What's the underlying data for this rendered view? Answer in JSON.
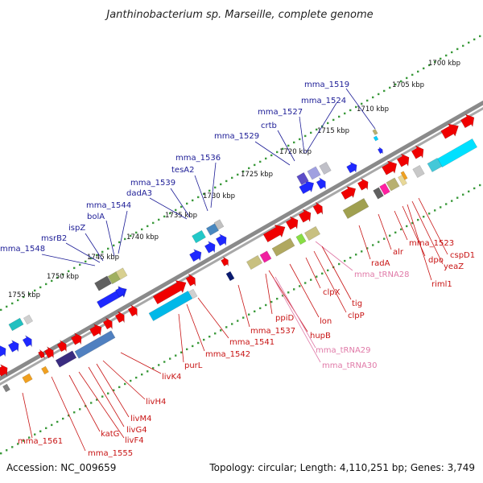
{
  "title": "Janthinobacterium sp. Marseille, complete genome",
  "footer": {
    "accession": "Accession: NC_009659",
    "summary": "Topology: circular; Length: 4,110,251 bp; Genes: 3,749"
  },
  "colors": {
    "upper_label": "#1c1c96",
    "lower_label": "#c81414",
    "rna_label": "#e07aa8",
    "ruler_dot": "#3c9a3c",
    "backbone": "#8a8a8a"
  },
  "ruler_ticks": [
    "1700 kbp",
    "1705 kbp",
    "1710 kbp",
    "1715 kbp",
    "1720 kbp",
    "1725 kbp",
    "1730 kbp",
    "1735 kbp",
    "1740 kbp",
    "1745 kbp",
    "1750 kbp",
    "1755 kbp"
  ],
  "upper_labels": [
    "mma_1519",
    "mma_1524",
    "mma_1527",
    "crtb",
    "mma_1529",
    "mma_1536",
    "tesA2",
    "mma_1539",
    "dadA3",
    "mma_1544",
    "bolA",
    "ispZ",
    "msrB2",
    "mma_1548"
  ],
  "lower_labels": [
    "cspD1",
    "yeaZ",
    "riml1",
    "dpo",
    "mma_1523",
    "alr",
    "radA",
    "mma_tRNA28",
    "tig",
    "clpP",
    "clpX",
    "lon",
    "hupB",
    "ppiD",
    "mma_tRNA29",
    "mma_tRNA30",
    "mma_1537",
    "mma_1541",
    "mma_1542",
    "purL",
    "livK4",
    "livH4",
    "livM4",
    "livG4",
    "livF4",
    "katG",
    "mma_1555",
    "mma_1561"
  ],
  "rna_labels": [
    "mma_tRNA28",
    "mma_tRNA29",
    "mma_tRNA30"
  ]
}
